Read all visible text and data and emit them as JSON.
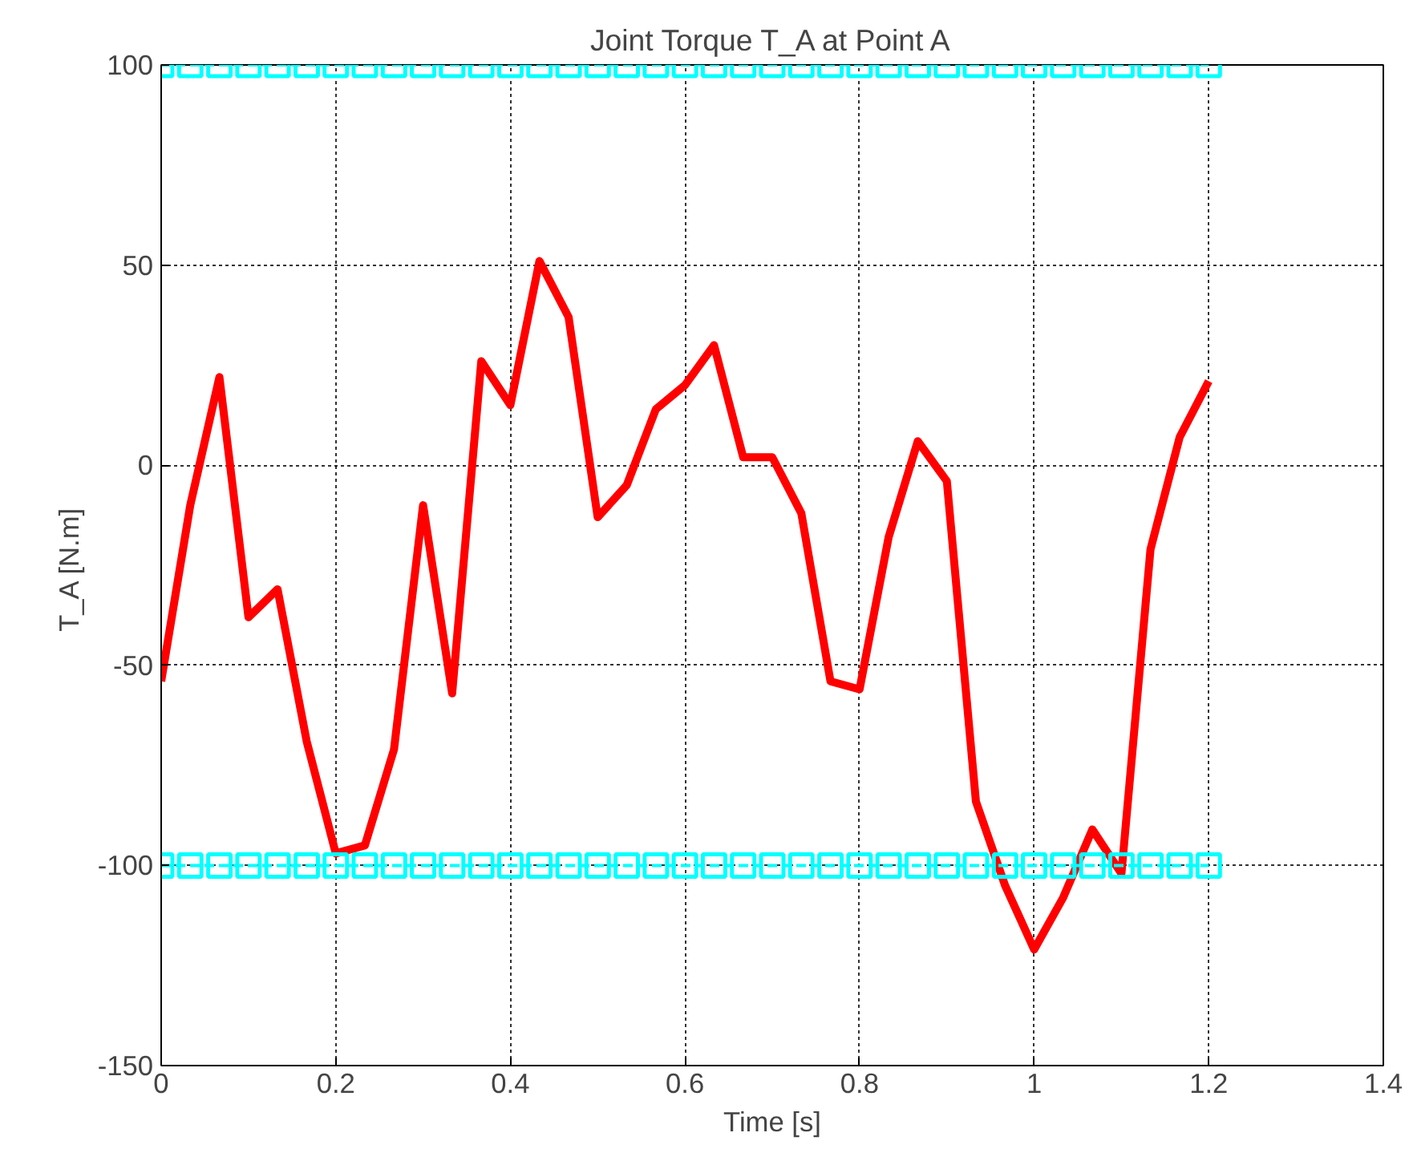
{
  "chart_data": {
    "type": "line",
    "title": "Joint Torque T_A at Point A",
    "xlabel": "Time [s]",
    "ylabel": "T_A  [N.m]",
    "x": [
      0,
      0.0333,
      0.0667,
      0.1,
      0.1333,
      0.1667,
      0.2,
      0.2333,
      0.2667,
      0.3,
      0.3333,
      0.3667,
      0.4,
      0.4333,
      0.4667,
      0.5,
      0.5333,
      0.5667,
      0.6,
      0.6333,
      0.6667,
      0.7,
      0.7333,
      0.7667,
      0.8,
      0.8333,
      0.8667,
      0.9,
      0.9333,
      0.9667,
      1.0,
      1.0333,
      1.0667,
      1.1,
      1.1333,
      1.1667,
      1.2
    ],
    "series": [
      {
        "values": [
          -54,
          -10,
          22,
          -38,
          -31,
          -69,
          -97,
          -95,
          -71,
          -10,
          -57,
          26,
          15,
          51,
          37,
          -13,
          -5,
          14,
          20,
          30,
          2,
          2,
          -12,
          -54,
          -56,
          -18,
          6,
          -4,
          -84,
          -105,
          -121,
          -108,
          -91,
          -102,
          -21,
          7,
          21
        ],
        "color": "#ff0000",
        "marker": "none",
        "line_style": "solid"
      },
      {
        "values": [
          100,
          100,
          100,
          100,
          100,
          100,
          100,
          100,
          100,
          100,
          100,
          100,
          100,
          100,
          100,
          100,
          100,
          100,
          100,
          100,
          100,
          100,
          100,
          100,
          100,
          100,
          100,
          100,
          100,
          100,
          100,
          100,
          100,
          100,
          100,
          100,
          100
        ],
        "color": "#00ffff",
        "marker": "square",
        "line_style": "dashed"
      },
      {
        "values": [
          -100,
          -100,
          -100,
          -100,
          -100,
          -100,
          -100,
          -100,
          -100,
          -100,
          -100,
          -100,
          -100,
          -100,
          -100,
          -100,
          -100,
          -100,
          -100,
          -100,
          -100,
          -100,
          -100,
          -100,
          -100,
          -100,
          -100,
          -100,
          -100,
          -100,
          -100,
          -100,
          -100,
          -100,
          -100,
          -100,
          -100
        ],
        "color": "#00ffff",
        "marker": "square",
        "line_style": "dashed"
      }
    ],
    "xlim": [
      0,
      1.4
    ],
    "xticks": [
      0,
      0.2,
      0.4,
      0.6,
      0.8,
      1,
      1.2,
      1.4
    ],
    "ylim": [
      -150,
      100
    ],
    "yticks": [
      -150,
      -100,
      -50,
      0,
      50,
      100
    ],
    "grid": true
  }
}
